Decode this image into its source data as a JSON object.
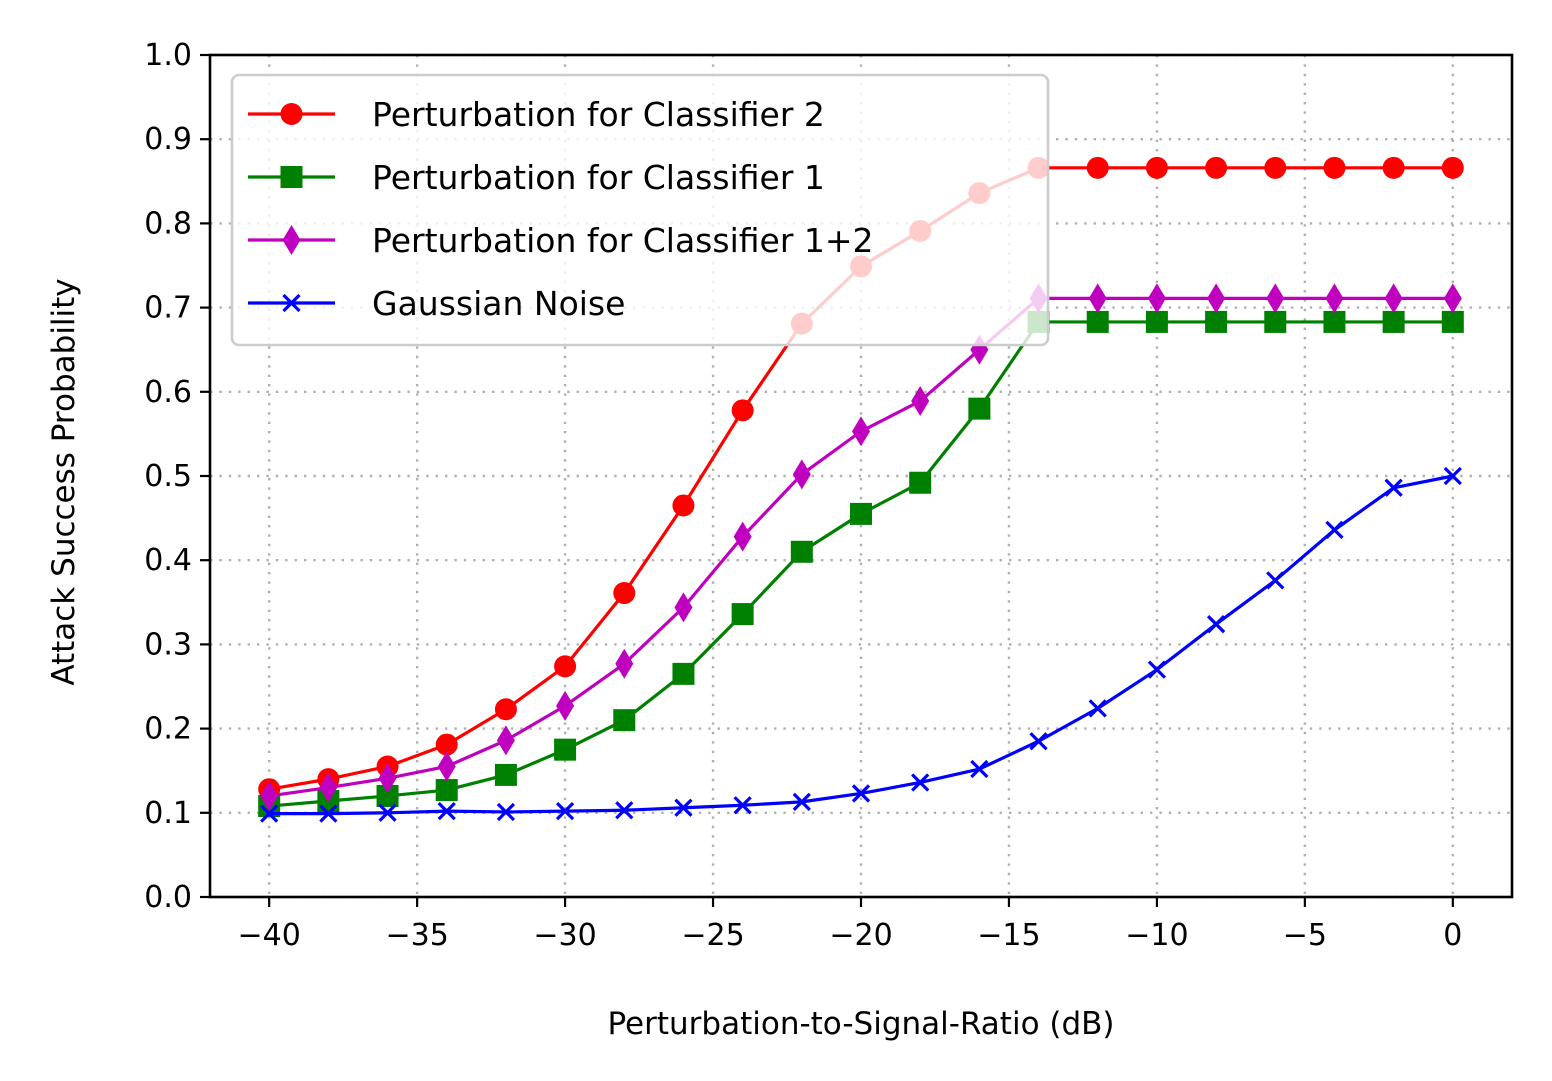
{
  "chart_data": {
    "type": "line",
    "title": "",
    "xlabel": "Perturbation-to-Signal-Ratio (dB)",
    "ylabel": "Attack Success Probability",
    "xlim": [
      -42,
      2
    ],
    "ylim": [
      0.0,
      1.0
    ],
    "x_ticks": [
      -40,
      -35,
      -30,
      -25,
      -20,
      -15,
      -10,
      -5,
      0
    ],
    "x_tick_labels": [
      "−40",
      "−35",
      "−30",
      "−25",
      "−20",
      "−15",
      "−10",
      "−5",
      "0"
    ],
    "y_ticks": [
      0.0,
      0.1,
      0.2,
      0.3,
      0.4,
      0.5,
      0.6,
      0.7,
      0.8,
      0.9,
      1.0
    ],
    "y_tick_labels": [
      "0.0",
      "0.1",
      "0.2",
      "0.3",
      "0.4",
      "0.5",
      "0.6",
      "0.7",
      "0.8",
      "0.9",
      "1.0"
    ],
    "grid": true,
    "legend_position": "upper-left",
    "x": [
      -40,
      -38,
      -36,
      -34,
      -32,
      -30,
      -28,
      -26,
      -24,
      -22,
      -20,
      -18,
      -16,
      -14,
      -12,
      -10,
      -8,
      -6,
      -4,
      -2,
      0
    ],
    "series": [
      {
        "name": "Perturbation for Classifier 2",
        "color": "#ff0000",
        "marker": "circle",
        "values": [
          0.128,
          0.14,
          0.155,
          0.181,
          0.223,
          0.274,
          0.361,
          0.465,
          0.578,
          0.681,
          0.749,
          0.791,
          0.836,
          0.866,
          0.866,
          0.866,
          0.866,
          0.866,
          0.866,
          0.866,
          0.866
        ]
      },
      {
        "name": "Perturbation for Classifier 1",
        "color": "#008000",
        "marker": "square",
        "values": [
          0.108,
          0.114,
          0.12,
          0.127,
          0.145,
          0.175,
          0.21,
          0.265,
          0.336,
          0.41,
          0.455,
          0.492,
          0.58,
          0.683,
          0.683,
          0.683,
          0.683,
          0.683,
          0.683,
          0.683,
          0.683
        ]
      },
      {
        "name": "Perturbation for Classifier 1+2",
        "color": "#bf00bf",
        "marker": "diamond",
        "values": [
          0.12,
          0.13,
          0.141,
          0.155,
          0.186,
          0.227,
          0.277,
          0.344,
          0.428,
          0.502,
          0.553,
          0.589,
          0.65,
          0.711,
          0.711,
          0.711,
          0.711,
          0.711,
          0.711,
          0.711,
          0.711
        ]
      },
      {
        "name": "Gaussian Noise",
        "color": "#0000ff",
        "marker": "x",
        "values": [
          0.099,
          0.099,
          0.1,
          0.102,
          0.101,
          0.102,
          0.103,
          0.106,
          0.109,
          0.113,
          0.123,
          0.136,
          0.152,
          0.185,
          0.224,
          0.27,
          0.324,
          0.376,
          0.436,
          0.486,
          0.5
        ]
      }
    ]
  }
}
